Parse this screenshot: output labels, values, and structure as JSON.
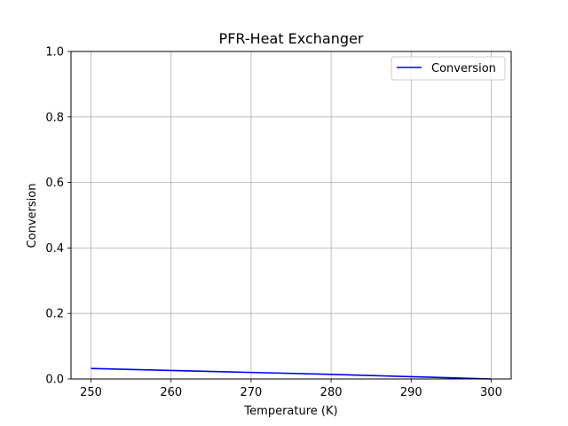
{
  "chart_data": {
    "type": "line",
    "title": "PFR-Heat Exchanger",
    "xlabel": "Temperature (K)",
    "ylabel": "Conversion",
    "xlim": [
      247.5,
      302.5
    ],
    "ylim": [
      0,
      1.0
    ],
    "x_ticks": [
      250,
      260,
      270,
      280,
      290,
      300
    ],
    "x_tick_labels": [
      "250",
      "260",
      "270",
      "280",
      "290",
      "300"
    ],
    "y_ticks": [
      0.0,
      0.2,
      0.4,
      0.6,
      0.8,
      1.0
    ],
    "y_tick_labels": [
      "0.0",
      "0.2",
      "0.4",
      "0.6",
      "0.8",
      "1.0"
    ],
    "grid": true,
    "legend_position": "top-right",
    "series": [
      {
        "name": "Conversion",
        "color": "#0000ff",
        "x": [
          250,
          260,
          270,
          280,
          290,
          300
        ],
        "y": [
          0.032,
          0.026,
          0.02,
          0.014,
          0.007,
          0.0
        ]
      }
    ]
  }
}
